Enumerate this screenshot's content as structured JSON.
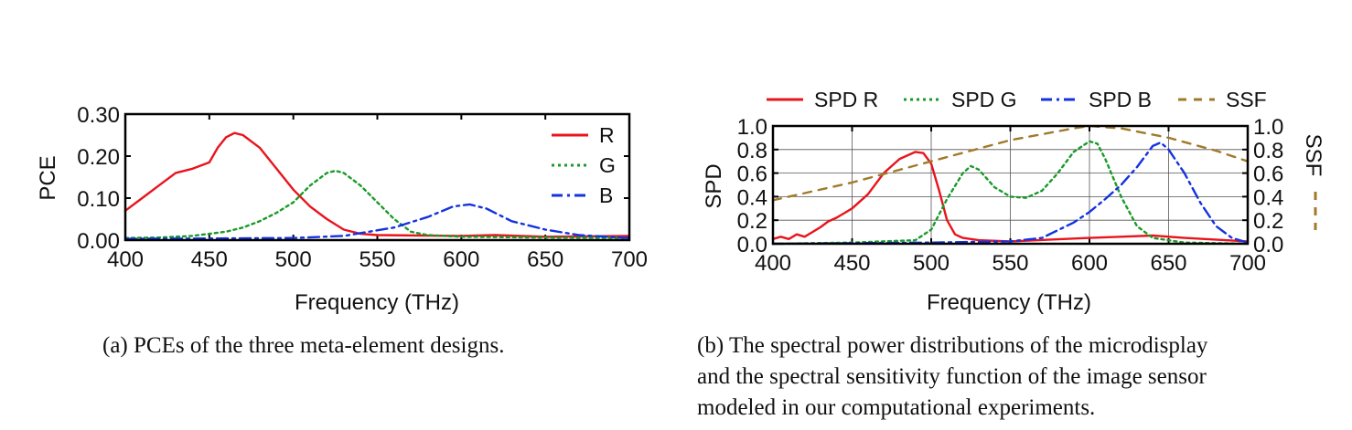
{
  "chart_data": [
    {
      "id": "a",
      "type": "line",
      "title": "",
      "xlabel": "Frequency (THz)",
      "ylabel": "PCE",
      "xlim": [
        400,
        700
      ],
      "ylim": [
        0,
        0.3
      ],
      "xticks": [
        400,
        450,
        500,
        550,
        600,
        650,
        700
      ],
      "xtick_labels": [
        "400",
        "450",
        "500",
        "550",
        "600",
        "650",
        "700"
      ],
      "yticks": [
        0,
        0.1,
        0.2,
        0.3
      ],
      "ytick_labels": [
        "0.00",
        "0.10",
        "0.20",
        "0.30"
      ],
      "legend_position": "top-right",
      "series": [
        {
          "name": "R",
          "color": "#e8141c",
          "dash": "solid",
          "x": [
            400,
            410,
            420,
            430,
            440,
            450,
            455,
            460,
            465,
            470,
            480,
            490,
            500,
            510,
            520,
            530,
            540,
            550,
            600,
            620,
            650,
            700
          ],
          "y": [
            0.07,
            0.1,
            0.13,
            0.16,
            0.17,
            0.185,
            0.22,
            0.245,
            0.255,
            0.25,
            0.22,
            0.17,
            0.12,
            0.08,
            0.05,
            0.025,
            0.015,
            0.012,
            0.01,
            0.012,
            0.008,
            0.01
          ]
        },
        {
          "name": "G",
          "color": "#1a9a2a",
          "dash": "dot",
          "x": [
            400,
            420,
            440,
            460,
            470,
            480,
            490,
            500,
            510,
            520,
            525,
            530,
            540,
            550,
            560,
            570,
            580,
            600,
            650,
            700
          ],
          "y": [
            0.005,
            0.006,
            0.01,
            0.02,
            0.03,
            0.045,
            0.065,
            0.09,
            0.13,
            0.16,
            0.165,
            0.16,
            0.13,
            0.09,
            0.05,
            0.02,
            0.012,
            0.008,
            0.006,
            0.005
          ]
        },
        {
          "name": "B",
          "color": "#1432e0",
          "dash": "dashdot",
          "x": [
            400,
            450,
            500,
            530,
            560,
            580,
            595,
            605,
            615,
            630,
            650,
            670,
            700
          ],
          "y": [
            0.003,
            0.004,
            0.005,
            0.01,
            0.03,
            0.055,
            0.08,
            0.085,
            0.075,
            0.045,
            0.025,
            0.012,
            0.005
          ]
        }
      ]
    },
    {
      "id": "b",
      "type": "line",
      "title": "",
      "xlabel": "Frequency (THz)",
      "ylabel": "SPD",
      "ylabel_right": "SSF",
      "xlim": [
        400,
        700
      ],
      "ylim": [
        0,
        1.0
      ],
      "ylim_right": [
        0,
        1.0
      ],
      "xticks": [
        400,
        450,
        500,
        550,
        600,
        650,
        700
      ],
      "xtick_labels": [
        "400",
        "450",
        "500",
        "550",
        "600",
        "650",
        "700"
      ],
      "yticks": [
        0,
        0.2,
        0.4,
        0.6,
        0.8,
        1.0
      ],
      "ytick_labels": [
        "0.0",
        "0.2",
        "0.4",
        "0.6",
        "0.8",
        "1.0"
      ],
      "grid": true,
      "legend_position": "top",
      "series": [
        {
          "name": "SPD R",
          "color": "#e8141c",
          "dash": "solid",
          "axis": "left",
          "x": [
            400,
            405,
            410,
            415,
            420,
            425,
            430,
            435,
            440,
            445,
            450,
            460,
            470,
            480,
            490,
            495,
            500,
            505,
            510,
            515,
            520,
            530,
            550,
            600,
            620,
            640,
            660,
            700
          ],
          "y": [
            0.04,
            0.06,
            0.04,
            0.08,
            0.06,
            0.1,
            0.14,
            0.19,
            0.22,
            0.26,
            0.3,
            0.42,
            0.6,
            0.72,
            0.78,
            0.77,
            0.68,
            0.45,
            0.2,
            0.08,
            0.05,
            0.03,
            0.02,
            0.05,
            0.06,
            0.07,
            0.05,
            0.02
          ]
        },
        {
          "name": "SPD G",
          "color": "#1a9a2a",
          "dash": "dot",
          "axis": "left",
          "x": [
            400,
            450,
            490,
            500,
            510,
            520,
            525,
            530,
            540,
            550,
            560,
            570,
            580,
            590,
            600,
            605,
            610,
            620,
            630,
            640,
            660,
            700
          ],
          "y": [
            0.0,
            0.01,
            0.03,
            0.12,
            0.38,
            0.6,
            0.66,
            0.63,
            0.48,
            0.4,
            0.39,
            0.45,
            0.6,
            0.78,
            0.87,
            0.85,
            0.72,
            0.4,
            0.15,
            0.05,
            0.01,
            0.0
          ]
        },
        {
          "name": "SPD B",
          "color": "#1432e0",
          "dash": "dashdot",
          "axis": "left",
          "x": [
            400,
            500,
            550,
            570,
            590,
            600,
            610,
            620,
            630,
            640,
            645,
            650,
            660,
            670,
            680,
            690,
            700
          ],
          "y": [
            0.0,
            0.01,
            0.02,
            0.05,
            0.18,
            0.27,
            0.38,
            0.5,
            0.65,
            0.83,
            0.86,
            0.8,
            0.6,
            0.35,
            0.15,
            0.05,
            0.01
          ]
        },
        {
          "name": "SSF",
          "color": "#a07a2a",
          "dash": "dash",
          "axis": "right",
          "x": [
            400,
            450,
            500,
            550,
            590,
            600,
            620,
            650,
            680,
            700
          ],
          "y": [
            0.37,
            0.52,
            0.7,
            0.88,
            0.98,
            1.0,
            0.98,
            0.9,
            0.79,
            0.7
          ]
        }
      ]
    }
  ],
  "captions": {
    "a": "(a) PCEs of the three meta-element designs.",
    "b": [
      "(b) The spectral power distributions of the microdisplay",
      "and the spectral sensitivity function of the image sensor",
      "modeled in our computational experiments."
    ]
  }
}
